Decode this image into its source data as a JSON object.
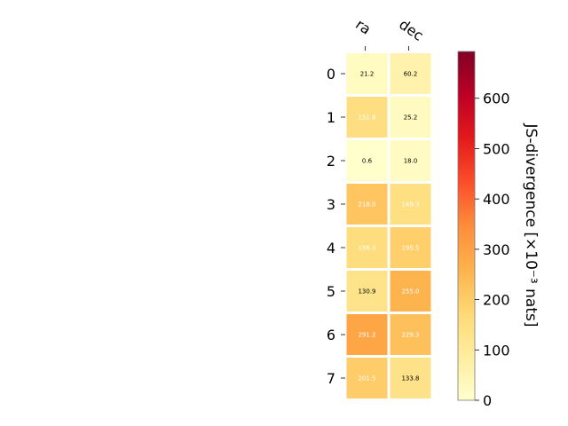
{
  "chart_data": {
    "type": "heatmap",
    "columns": [
      "ra",
      "dec"
    ],
    "rows": [
      "0",
      "1",
      "2",
      "3",
      "4",
      "5",
      "6",
      "7"
    ],
    "values": [
      [
        21.2,
        60.2
      ],
      [
        151.8,
        25.2
      ],
      [
        0.6,
        18.0
      ],
      [
        218.0,
        149.3
      ],
      [
        156.3,
        195.5
      ],
      [
        130.9,
        255.0
      ],
      [
        291.2,
        229.3
      ],
      [
        201.5,
        133.8
      ]
    ],
    "value_labels": [
      [
        "21.2",
        "60.2"
      ],
      [
        "151.8",
        "25.2"
      ],
      [
        "0.6",
        "18.0"
      ],
      [
        "218.0",
        "149.3"
      ],
      [
        "156.3",
        "195.5"
      ],
      [
        "130.9",
        "255.0"
      ],
      [
        "291.2",
        "229.3"
      ],
      [
        "201.5",
        "133.8"
      ]
    ],
    "colorbar": {
      "label": "JS-divergence [×10⁻³ nats]",
      "range": [
        0,
        693
      ],
      "ticks": [
        0,
        100,
        200,
        300,
        400,
        500,
        600
      ],
      "tick_labels": [
        "0",
        "100",
        "200",
        "300",
        "400",
        "500",
        "600"
      ],
      "colormap": "YlOrRd"
    },
    "label_text_colors": {
      "dark": "#000000",
      "light": "#ffffff"
    },
    "grid": false
  }
}
